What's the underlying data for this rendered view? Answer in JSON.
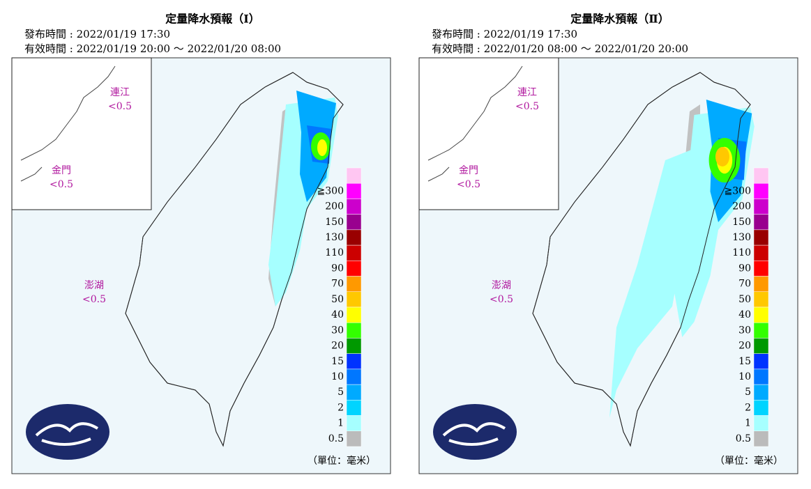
{
  "panels": [
    {
      "title": "定量降水預報（Ⅰ）",
      "issued": "發布時間 : 2022/01/19 17:30",
      "valid": "有效時間 : 2022/01/19 20:00 ～ 2022/01/20 08:00",
      "regions": [
        {
          "name": "連江",
          "value": "<0.5"
        },
        {
          "name": "金門",
          "value": "<0.5"
        },
        {
          "name": "澎湖",
          "value": "<0.5"
        }
      ],
      "unit": "（單位：毫米）"
    },
    {
      "title": "定量降水預報（Ⅱ）",
      "issued": "發布時間 : 2022/01/19 17:30",
      "valid": "有效時間 : 2022/01/20 08:00 ～ 2022/01/20 20:00",
      "regions": [
        {
          "name": "連江",
          "value": "<0.5"
        },
        {
          "name": "金門",
          "value": "<0.5"
        },
        {
          "name": "澎湖",
          "value": "<0.5"
        }
      ],
      "unit": "（單位：毫米）"
    }
  ],
  "legend": {
    "labels": [
      "≧300",
      "200",
      "150",
      "130",
      "110",
      "90",
      "70",
      "50",
      "40",
      "30",
      "20",
      "15",
      "10",
      "5",
      "2",
      "1",
      "0.5"
    ],
    "colors": [
      "#ffc6f2",
      "#ff00ff",
      "#cc00cc",
      "#99008f",
      "#990000",
      "#cc0000",
      "#ff0000",
      "#ff9900",
      "#ffc800",
      "#ffff00",
      "#33ff00",
      "#009900",
      "#0033ff",
      "#0077ff",
      "#00aaff",
      "#00d4ff",
      "#a6ffff",
      "#bbbbbb"
    ]
  }
}
